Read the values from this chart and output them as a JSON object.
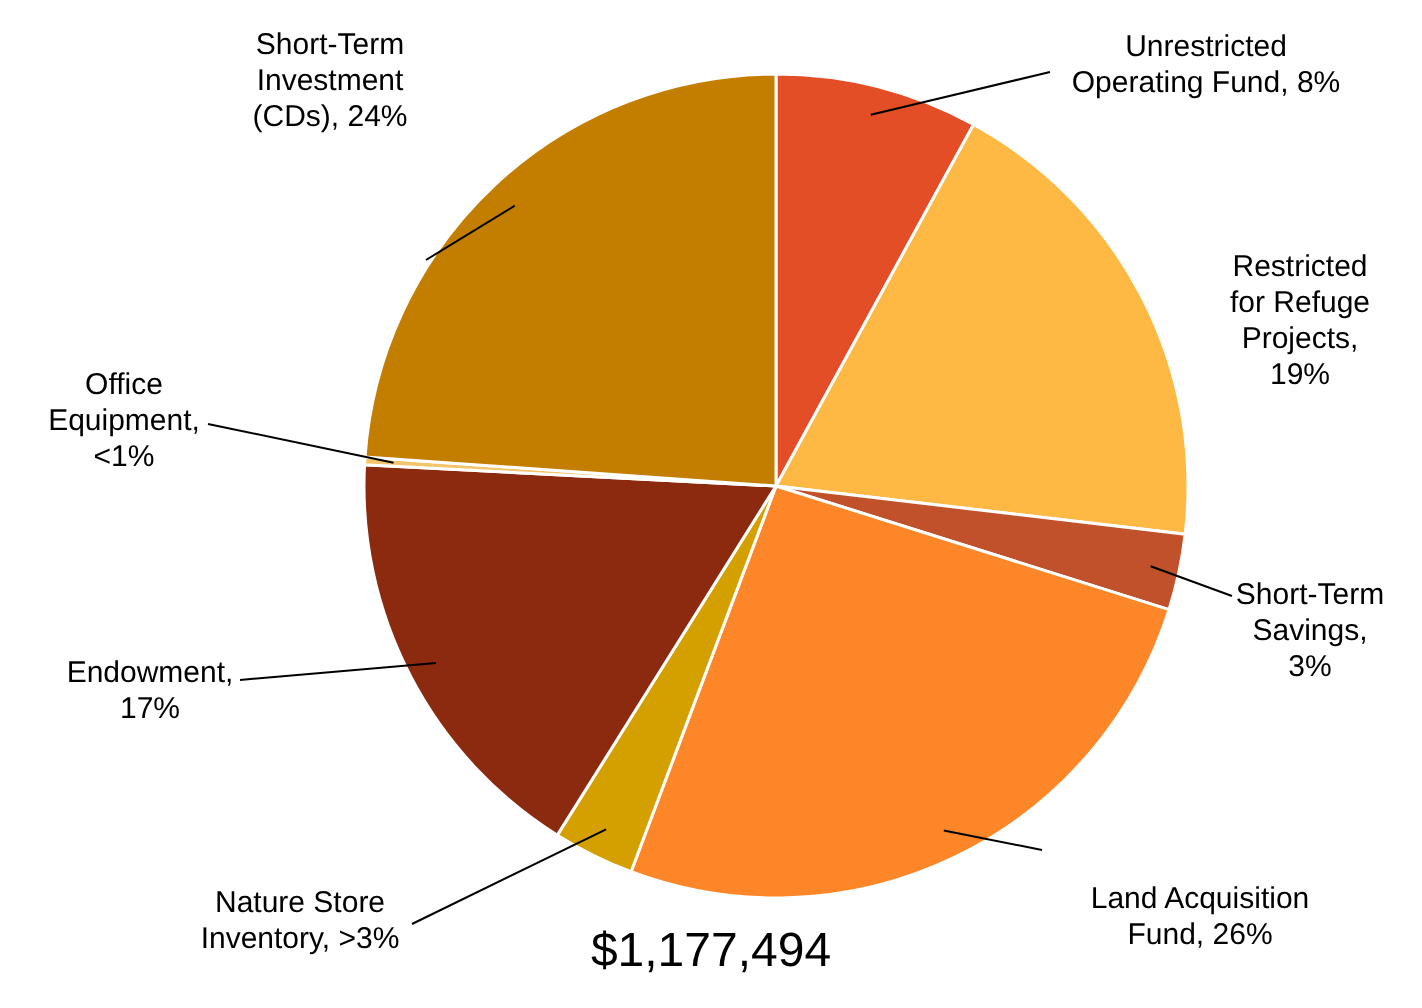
{
  "chart_data": {
    "type": "pie",
    "title": "$1,177,494",
    "categories": [
      "Unrestricted Operating Fund, 8%",
      "Restricted for Refuge Projects, 19%",
      "Short-Term Savings, 3%",
      "Land Acquisition Fund, 26%",
      "Nature Store Inventory, >3%",
      "Endowment, 17%",
      "Office Equipment, <1%",
      "Short-Term Investment (CDs), 24%"
    ],
    "values": [
      8,
      19,
      3,
      26,
      3.2,
      17,
      0.3,
      24
    ],
    "colors": [
      "#e34e26",
      "#fdb944",
      "#c0512a",
      "#fd8628",
      "#d4a000",
      "#8b2a0f",
      "#f3c46a",
      "#c37e00"
    ]
  }
}
